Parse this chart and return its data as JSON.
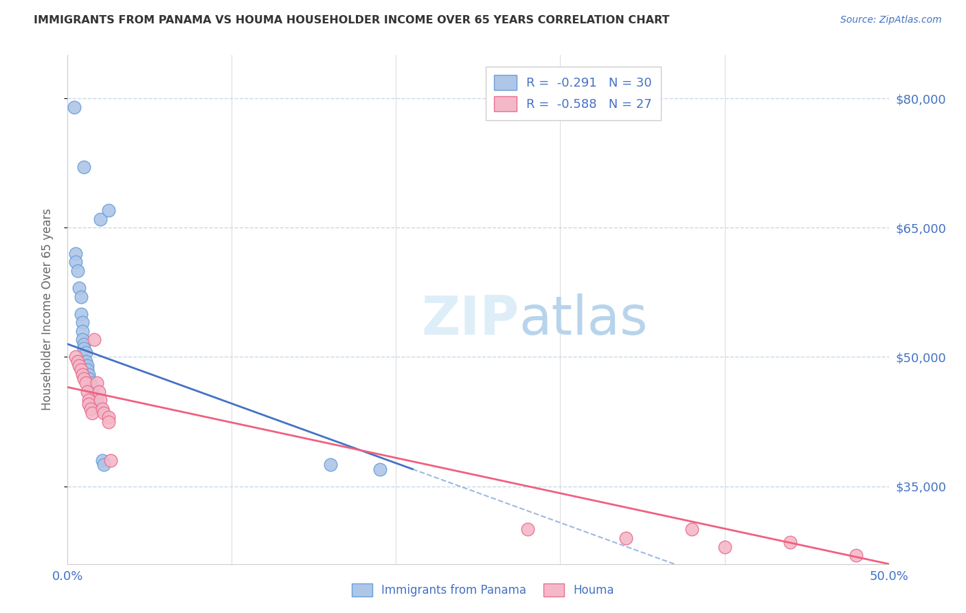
{
  "title": "IMMIGRANTS FROM PANAMA VS HOUMA HOUSEHOLDER INCOME OVER 65 YEARS CORRELATION CHART",
  "source": "Source: ZipAtlas.com",
  "ylabel": "Householder Income Over 65 years",
  "legend_label1": "Immigrants from Panama",
  "legend_label2": "Houma",
  "legend_r1": "-0.291",
  "legend_n1": "30",
  "legend_r2": "-0.588",
  "legend_n2": "27",
  "xlim": [
    0.0,
    0.5
  ],
  "ylim": [
    26000,
    85000
  ],
  "yticks": [
    35000,
    50000,
    65000,
    80000
  ],
  "ytick_labels": [
    "$35,000",
    "$50,000",
    "$65,000",
    "$80,000"
  ],
  "xticks": [
    0.0,
    0.1,
    0.2,
    0.3,
    0.4,
    0.5
  ],
  "xtick_labels": [
    "0.0%",
    "",
    "",
    "",
    "",
    "50.0%"
  ],
  "color_blue_fill": "#aec6e8",
  "color_blue_edge": "#6a9fd8",
  "color_pink_fill": "#f4b8c8",
  "color_pink_edge": "#e87090",
  "color_blue_line": "#4472c4",
  "color_pink_line": "#f06080",
  "color_axis_labels": "#4472c4",
  "blue_dots_x": [
    0.004,
    0.01,
    0.02,
    0.025,
    0.005,
    0.005,
    0.006,
    0.007,
    0.008,
    0.008,
    0.009,
    0.009,
    0.009,
    0.01,
    0.01,
    0.011,
    0.011,
    0.012,
    0.012,
    0.013,
    0.013,
    0.014,
    0.015,
    0.016,
    0.018,
    0.019,
    0.021,
    0.022,
    0.16,
    0.19
  ],
  "blue_dots_y": [
    79000,
    72000,
    66000,
    67000,
    62000,
    61000,
    60000,
    58000,
    57000,
    55000,
    54000,
    53000,
    52000,
    51500,
    51000,
    50500,
    49500,
    49000,
    48500,
    48000,
    47500,
    47000,
    46500,
    45500,
    45000,
    44000,
    38000,
    37500,
    37500,
    37000
  ],
  "pink_dots_x": [
    0.005,
    0.006,
    0.007,
    0.008,
    0.009,
    0.01,
    0.011,
    0.012,
    0.013,
    0.013,
    0.014,
    0.015,
    0.016,
    0.018,
    0.019,
    0.02,
    0.021,
    0.022,
    0.025,
    0.025,
    0.026,
    0.28,
    0.34,
    0.38,
    0.4,
    0.44,
    0.48
  ],
  "pink_dots_y": [
    50000,
    49500,
    49000,
    48500,
    48000,
    47500,
    47000,
    46000,
    45000,
    44500,
    44000,
    43500,
    52000,
    47000,
    46000,
    45000,
    44000,
    43500,
    43000,
    42500,
    38000,
    30000,
    29000,
    30000,
    28000,
    28500,
    27000
  ],
  "background_color": "#ffffff",
  "grid_color": "#c8d8e8",
  "title_color": "#333333",
  "watermark_color": "#ddeef8"
}
